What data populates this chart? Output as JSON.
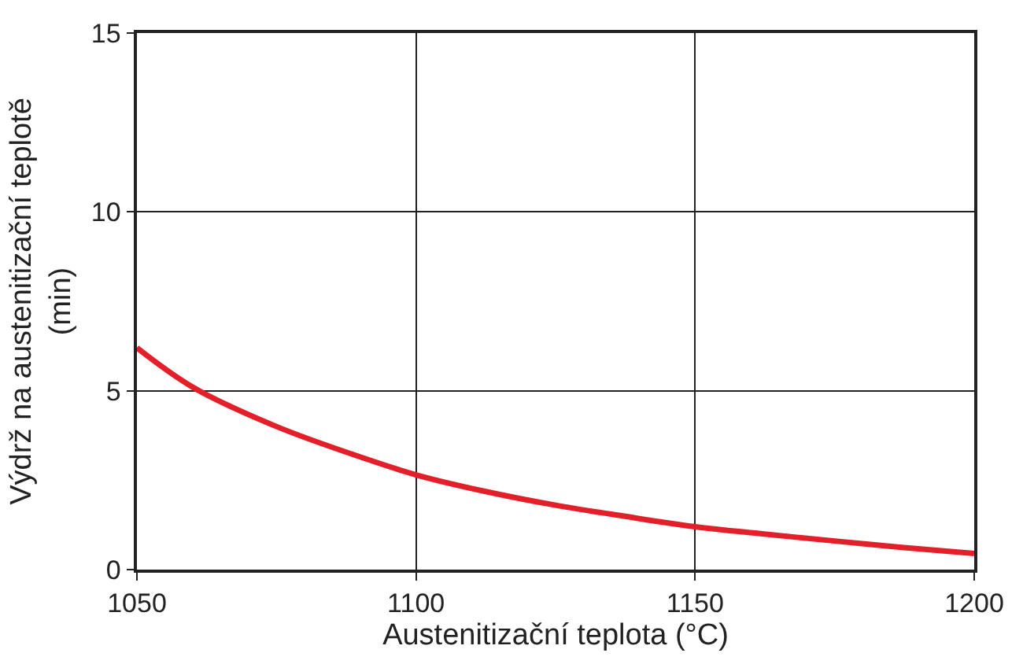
{
  "chart_data": {
    "type": "line",
    "xlabel": "Austenitizační teplota (°C)",
    "ylabel": "Výdrž na austenitizační teplotě\n(min)",
    "x": [
      1050,
      1060,
      1075,
      1090,
      1100,
      1112,
      1125,
      1137,
      1150,
      1162,
      1175,
      1187,
      1200
    ],
    "series": [
      {
        "color": "#e3202a",
        "values": [
          6.2,
          5.1,
          4.0,
          3.15,
          2.65,
          2.2,
          1.8,
          1.5,
          1.2,
          1.0,
          0.8,
          0.62,
          0.45
        ]
      }
    ],
    "xlim": [
      1050,
      1200
    ],
    "xticks": [
      1050,
      1100,
      1150,
      1200
    ],
    "ylim": [
      0,
      15
    ],
    "yticks": [
      0,
      5,
      10,
      15
    ],
    "grid": true,
    "marker": "none",
    "line_style": "solid",
    "legend": false
  }
}
